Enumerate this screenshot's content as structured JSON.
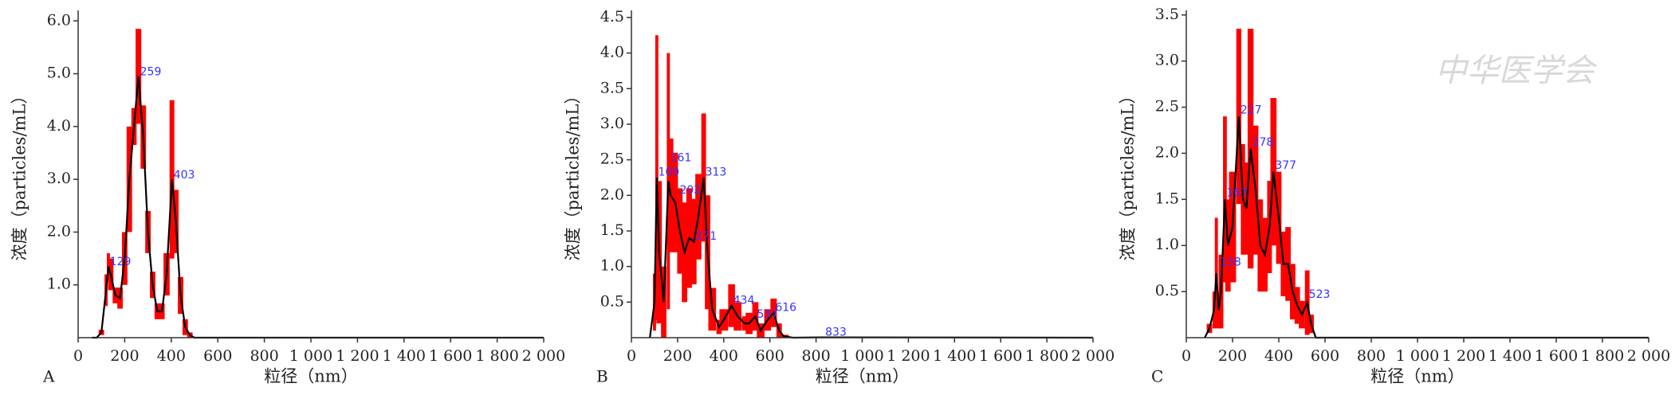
{
  "watermark": "中华医学会",
  "chart_data": [
    {
      "type": "line",
      "panel": "A",
      "xlabel": "粒径（nm）",
      "ylabel": "浓度（particles/mL）",
      "color": "#000000",
      "error_color": "#ff0000",
      "x": [
        60,
        80,
        100,
        120,
        130,
        140,
        160,
        180,
        200,
        220,
        240,
        259,
        280,
        300,
        320,
        340,
        360,
        380,
        403,
        420,
        440,
        460,
        480,
        500,
        520,
        2000
      ],
      "values": [
        0,
        0,
        0.1,
        0.9,
        1.35,
        1.2,
        0.8,
        0.75,
        1.5,
        3.0,
        4.0,
        4.95,
        3.8,
        2.0,
        1.0,
        0.5,
        0.5,
        1.2,
        3.0,
        2.2,
        0.8,
        0.2,
        0.05,
        0,
        0,
        0
      ],
      "errors": [
        0,
        0,
        0.05,
        0.3,
        0.25,
        0.3,
        0.15,
        0.2,
        0.5,
        1.0,
        0.35,
        0.9,
        0.6,
        0.4,
        0.25,
        0.15,
        0.15,
        0.4,
        1.5,
        0.6,
        0.35,
        0.15,
        0.05,
        0,
        0,
        0
      ],
      "peak_x": [
        129,
        259,
        403
      ],
      "peak_y": [
        1.4,
        5.0,
        3.05
      ],
      "xlim": [
        0,
        2000
      ],
      "ylim": [
        0,
        6.2
      ],
      "xticks": [
        0,
        200,
        400,
        600,
        800,
        {
          "value": 1000,
          "label": "1 000"
        },
        {
          "value": 1200,
          "label": "1 200"
        },
        {
          "value": 1400,
          "label": "1 400"
        },
        {
          "value": 1600,
          "label": "1 600"
        },
        {
          "value": 1800,
          "label": "1 800"
        },
        {
          "value": 2000,
          "label": "2 000"
        }
      ],
      "yticks": [
        {
          "value": 1,
          "label": "1.0"
        },
        {
          "value": 2,
          "label": "2.0"
        },
        {
          "value": 3,
          "label": "3.0"
        },
        {
          "value": 4,
          "label": "4.0"
        },
        {
          "value": 5,
          "label": "5.0"
        },
        {
          "value": 6,
          "label": "6.0"
        }
      ]
    },
    {
      "type": "line",
      "panel": "B",
      "xlabel": "粒径（nm）",
      "ylabel": "浓度（particles/mL）",
      "color": "#000000",
      "error_color": "#ff0000",
      "x": [
        80,
        100,
        110,
        120,
        140,
        160,
        170,
        190,
        210,
        230,
        250,
        271,
        290,
        313,
        330,
        350,
        380,
        400,
        434,
        460,
        490,
        510,
        537,
        560,
        590,
        616,
        640,
        660,
        700,
        833,
        2000
      ],
      "values": [
        0,
        0.5,
        2.25,
        1.2,
        0.5,
        2.2,
        2.0,
        1.9,
        1.5,
        1.2,
        1.4,
        1.35,
        1.7,
        2.25,
        1.2,
        0.4,
        0.15,
        0.25,
        0.45,
        0.3,
        0.2,
        0.2,
        0.3,
        0.1,
        0.25,
        0.35,
        0.1,
        0.02,
        0,
        0.005,
        0
      ],
      "errors": [
        0,
        0.4,
        2.0,
        1.0,
        0.5,
        1.8,
        0.8,
        0.7,
        0.6,
        0.7,
        0.7,
        0.6,
        0.6,
        0.9,
        0.8,
        0.3,
        0.1,
        0.15,
        0.3,
        0.2,
        0.1,
        0.15,
        0.2,
        0.1,
        0.15,
        0.2,
        0.1,
        0.02,
        0,
        0.005,
        0
      ],
      "peak_x": [
        109,
        161,
        202,
        271,
        313,
        434,
        537,
        616,
        833
      ],
      "peak_y": [
        2.3,
        2.5,
        2.05,
        1.4,
        2.3,
        0.5,
        0.3,
        0.4,
        0.05
      ],
      "xlim": [
        0,
        2000
      ],
      "ylim": [
        0,
        4.6
      ],
      "xticks": [
        0,
        200,
        400,
        600,
        800,
        {
          "value": 1000,
          "label": "1 000"
        },
        {
          "value": 1200,
          "label": "1 200"
        },
        {
          "value": 1400,
          "label": "1 400"
        },
        {
          "value": 1600,
          "label": "1 600"
        },
        {
          "value": 1800,
          "label": "1 800"
        },
        {
          "value": 2000,
          "label": "2 000"
        }
      ],
      "yticks": [
        0.5,
        {
          "value": 1,
          "label": "1.0"
        },
        1.5,
        {
          "value": 2,
          "label": "2.0"
        },
        2.5,
        {
          "value": 3,
          "label": "3.0"
        },
        3.5,
        {
          "value": 4,
          "label": "4.0"
        },
        4.5
      ]
    },
    {
      "type": "line",
      "panel": "C",
      "xlabel": "粒径（nm）",
      "ylabel": "浓度（particles/mL）",
      "color": "#000000",
      "error_color": "#ff0000",
      "x": [
        80,
        100,
        120,
        130,
        140,
        150,
        167,
        180,
        200,
        227,
        245,
        260,
        278,
        300,
        320,
        340,
        360,
        377,
        400,
        420,
        440,
        460,
        480,
        500,
        523,
        540,
        560,
        2000
      ],
      "values": [
        0,
        0.1,
        0.3,
        0.7,
        0.3,
        0.5,
        1.5,
        1.0,
        1.2,
        2.4,
        1.5,
        1.4,
        2.05,
        1.6,
        1.0,
        0.9,
        1.2,
        1.8,
        1.3,
        0.8,
        0.8,
        0.5,
        0.35,
        0.25,
        0.38,
        0.15,
        0,
        0
      ],
      "errors": [
        0,
        0.05,
        0.2,
        0.6,
        0.2,
        0.4,
        0.9,
        0.5,
        0.6,
        0.95,
        0.6,
        0.5,
        1.3,
        0.7,
        0.5,
        0.4,
        0.5,
        0.8,
        0.5,
        0.35,
        0.4,
        0.3,
        0.2,
        0.15,
        0.35,
        0.1,
        0,
        0
      ],
      "peak_x": [
        138,
        167,
        227,
        278,
        377,
        523
      ],
      "peak_y": [
        0.8,
        1.55,
        2.45,
        2.1,
        1.85,
        0.45
      ],
      "xlim": [
        0,
        2000
      ],
      "ylim": [
        0,
        3.55
      ],
      "xticks": [
        0,
        200,
        400,
        600,
        800,
        {
          "value": 1000,
          "label": "1 000"
        },
        {
          "value": 1200,
          "label": "1 200"
        },
        {
          "value": 1400,
          "label": "1 400"
        },
        {
          "value": 1600,
          "label": "1 600"
        },
        {
          "value": 1800,
          "label": "1 800"
        },
        {
          "value": 2000,
          "label": "2 000"
        }
      ],
      "yticks": [
        0.5,
        {
          "value": 1,
          "label": "1.0"
        },
        1.5,
        {
          "value": 2,
          "label": "2.0"
        },
        2.5,
        {
          "value": 3,
          "label": "3.0"
        },
        3.5
      ]
    }
  ]
}
